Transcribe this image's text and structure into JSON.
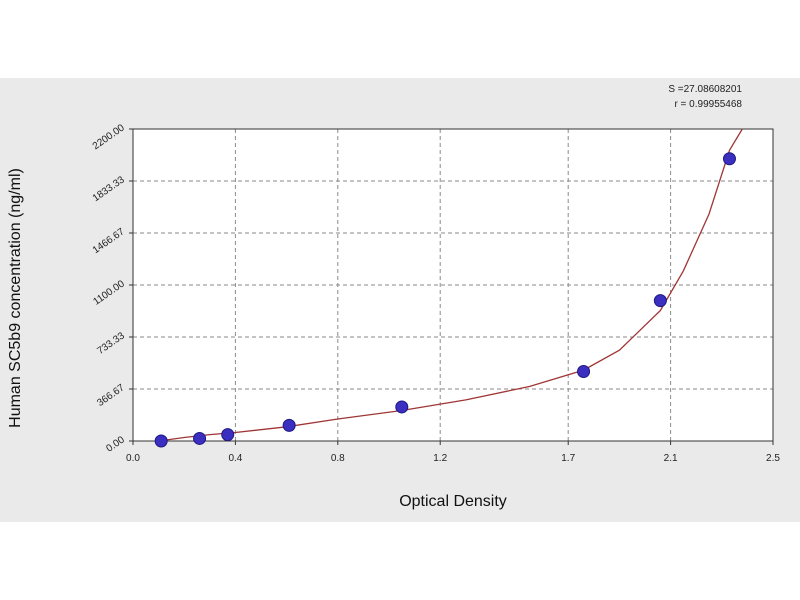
{
  "chart_data": {
    "type": "scatter",
    "xlabel": "Optical Density",
    "ylabel": "Human SC5b9 concentration (ng/ml)",
    "xlim": [
      0.0,
      2.5
    ],
    "ylim": [
      0.0,
      2200.0
    ],
    "x_ticks": [
      "0.0",
      "0.4",
      "0.8",
      "1.2",
      "1.7",
      "2.1",
      "2.5"
    ],
    "x_tick_values": [
      0.0,
      0.4,
      0.8,
      1.2,
      1.7,
      2.1,
      2.5
    ],
    "y_ticks": [
      "0.00",
      "366.67",
      "733.33",
      "1100.00",
      "1466.67",
      "1833.33",
      "2200.00"
    ],
    "y_tick_values": [
      0.0,
      366.67,
      733.33,
      1100.0,
      1466.67,
      1833.33,
      2200.0
    ],
    "grid": true,
    "points": {
      "x": [
        0.11,
        0.26,
        0.37,
        0.61,
        1.05,
        1.76,
        2.06,
        2.33
      ],
      "y": [
        0,
        18,
        45,
        110,
        240,
        490,
        990,
        1990
      ]
    },
    "fit_curve": {
      "x": [
        0.1,
        0.2,
        0.3,
        0.4,
        0.6,
        0.8,
        1.05,
        1.3,
        1.55,
        1.76,
        1.9,
        2.06,
        2.15,
        2.25,
        2.33,
        2.38
      ],
      "y": [
        0,
        25,
        45,
        60,
        100,
        155,
        215,
        290,
        385,
        500,
        640,
        920,
        1200,
        1600,
        2050,
        2200
      ]
    },
    "stats": {
      "s": "S =27.08608201",
      "r": "r = 0.99955468"
    },
    "colors": {
      "point_fill": "#3a2fc0",
      "curve": "#a03535",
      "grid": "#8a8a8a",
      "panel": "#eaeaea"
    }
  }
}
